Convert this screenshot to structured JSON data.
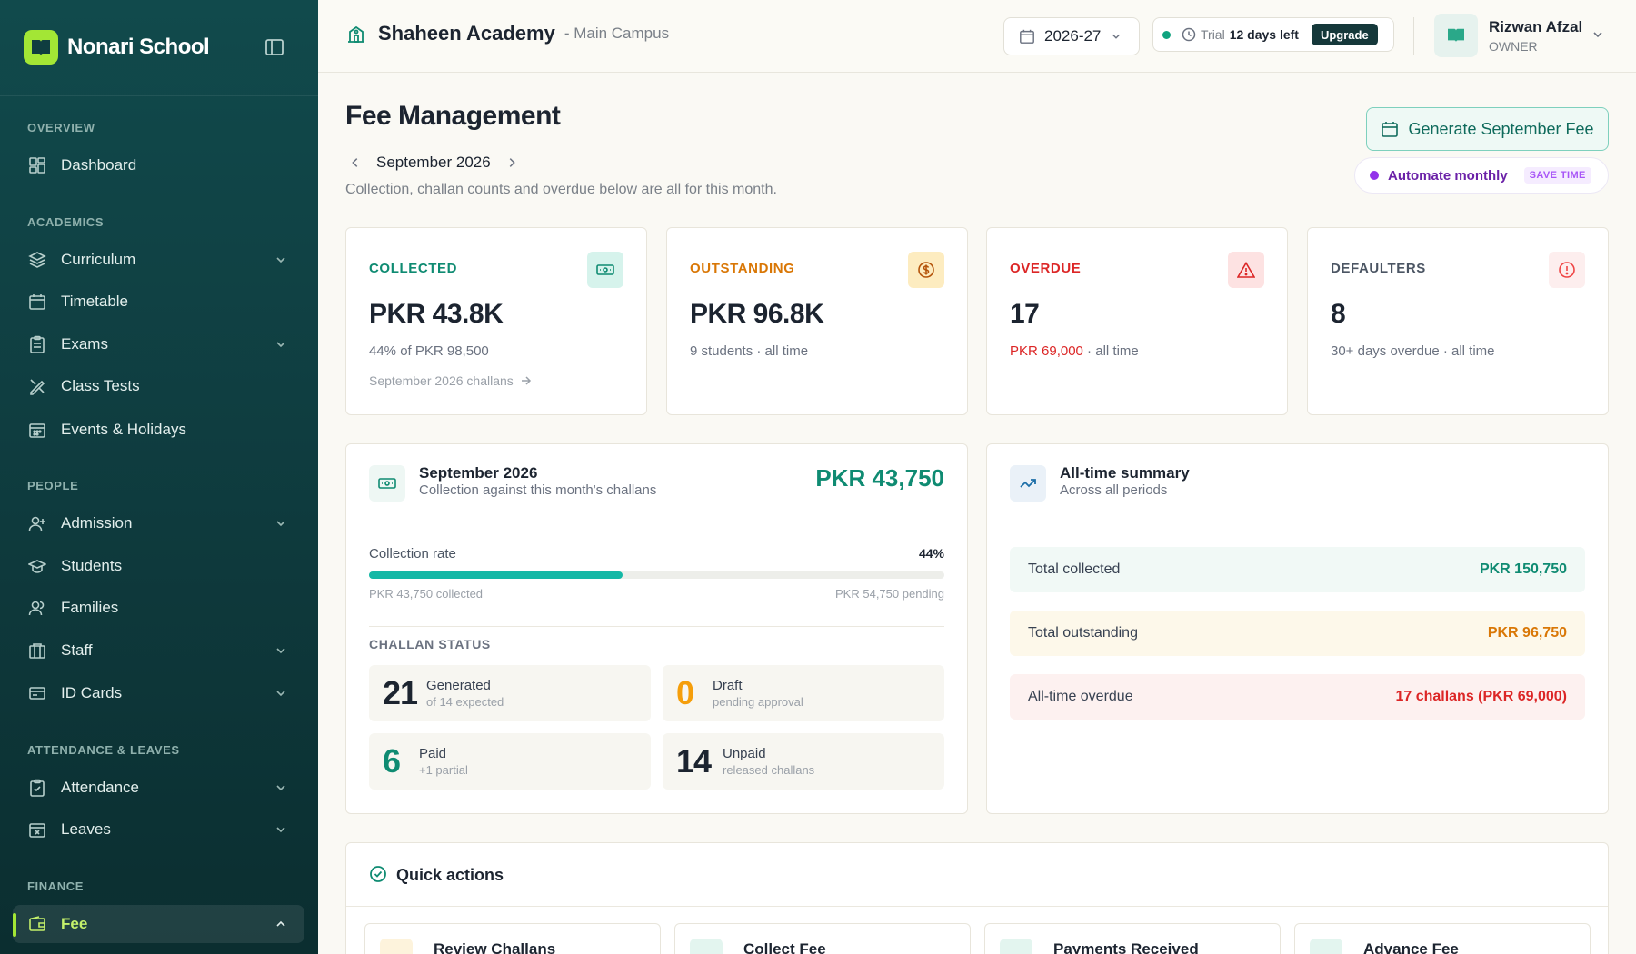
{
  "app": {
    "name": "Nonari School"
  },
  "sidebar": {
    "sections": {
      "overview": "OVERVIEW",
      "academics": "ACADEMICS",
      "people": "PEOPLE",
      "attendance": "ATTENDANCE & LEAVES",
      "finance": "FINANCE"
    },
    "items": {
      "dashboard": "Dashboard",
      "curriculum": "Curriculum",
      "timetable": "Timetable",
      "exams": "Exams",
      "class_tests": "Class Tests",
      "events": "Events & Holidays",
      "admission": "Admission",
      "students": "Students",
      "families": "Families",
      "staff": "Staff",
      "id_cards": "ID Cards",
      "attendance": "Attendance",
      "leaves": "Leaves",
      "fee": "Fee"
    }
  },
  "header": {
    "school_name": "Shaheen Academy",
    "campus": "- Main Campus",
    "academic_year": "2026-27",
    "trial_label": "Trial",
    "trial_days": "12 days left",
    "upgrade": "Upgrade",
    "user_name": "Rizwan Afzal",
    "user_role": "OWNER"
  },
  "page": {
    "title": "Fee Management",
    "month": "September 2026",
    "subtext": "Collection, challan counts and overdue below are all for this month.",
    "generate_button": "Generate September Fee",
    "automate_label": "Automate monthly",
    "automate_badge": "SAVE TIME"
  },
  "stats": {
    "collected": {
      "label": "COLLECTED",
      "value": "PKR 43.8K",
      "sub": "44% of PKR 98,500",
      "link": "September 2026 challans"
    },
    "outstanding": {
      "label": "OUTSTANDING",
      "value": "PKR 96.8K",
      "sub": "9 students · all time"
    },
    "overdue": {
      "label": "OVERDUE",
      "value": "17",
      "sub_amount": "PKR 69,000",
      "sub_rest": " · all time"
    },
    "defaulters": {
      "label": "DEFAULTERS",
      "value": "8",
      "sub": "30+ days overdue · all time"
    }
  },
  "month_panel": {
    "title": "September 2026",
    "subtitle": "Collection against this month's challans",
    "amount": "PKR 43,750",
    "rate_label": "Collection rate",
    "rate_value": "44%",
    "rate_fraction": 0.44,
    "collected_text": "PKR 43,750 collected",
    "pending_text": "PKR 54,750 pending",
    "status_label": "CHALLAN STATUS",
    "status": {
      "generated": {
        "num": "21",
        "label": "Generated",
        "sub": "of 14 expected"
      },
      "draft": {
        "num": "0",
        "label": "Draft",
        "sub": "pending approval"
      },
      "paid": {
        "num": "6",
        "label": "Paid",
        "sub": "+1 partial"
      },
      "unpaid": {
        "num": "14",
        "label": "Unpaid",
        "sub": "released challans"
      }
    }
  },
  "summary_panel": {
    "title": "All-time summary",
    "subtitle": "Across all periods",
    "rows": {
      "collected": {
        "label": "Total collected",
        "value": "PKR 150,750"
      },
      "outstanding": {
        "label": "Total outstanding",
        "value": "PKR 96,750"
      },
      "overdue": {
        "label": "All-time overdue",
        "value": "17 challans (PKR 69,000)"
      }
    }
  },
  "quick_actions": {
    "title": "Quick actions",
    "items": [
      "Review Challans",
      "Collect Fee",
      "Payments Received",
      "Advance Fee"
    ]
  },
  "colors": {
    "sidebar_bg": "#114a4c",
    "accent_lime": "#a3e635",
    "teal": "#0f8b72",
    "orange": "#d97706",
    "red": "#dc2626",
    "purple": "#9333ea"
  }
}
